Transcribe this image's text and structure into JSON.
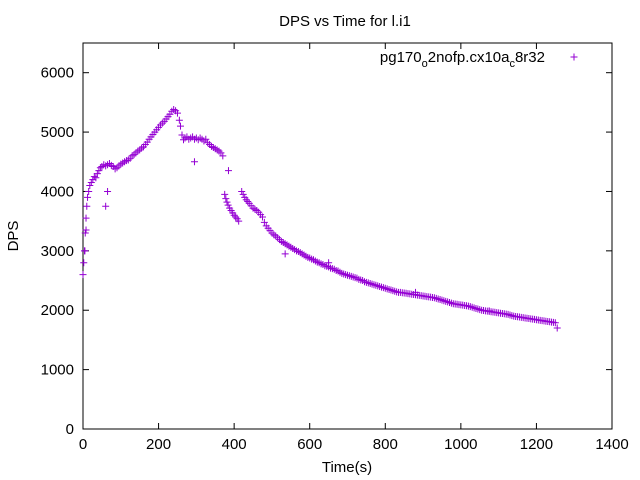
{
  "chart_data": {
    "type": "scatter",
    "title": "DPS vs Time for l.i1",
    "xlabel": "Time(s)",
    "ylabel": "DPS",
    "xlim": [
      0,
      1400
    ],
    "ylim": [
      0,
      6500
    ],
    "xticks": [
      0,
      200,
      400,
      600,
      800,
      1000,
      1200,
      1400
    ],
    "yticks": [
      0,
      1000,
      2000,
      3000,
      4000,
      5000,
      6000
    ],
    "grid": false,
    "legend_position": "top-right",
    "marker": "+",
    "color": "#9400d3",
    "series": [
      {
        "name_parts": [
          "pg170",
          "o",
          "2nofp.cx10a",
          "c",
          "8r32"
        ],
        "points": [
          [
            0,
            2600
          ],
          [
            2,
            2800
          ],
          [
            4,
            3000
          ],
          [
            6,
            3300
          ],
          [
            8,
            3550
          ],
          [
            10,
            3750
          ],
          [
            12,
            3900
          ],
          [
            15,
            4000
          ],
          [
            18,
            4100
          ],
          [
            22,
            4150
          ],
          [
            26,
            4200
          ],
          [
            30,
            4250
          ],
          [
            34,
            4230
          ],
          [
            38,
            4300
          ],
          [
            42,
            4350
          ],
          [
            46,
            4400
          ],
          [
            50,
            4420
          ],
          [
            55,
            4450
          ],
          [
            60,
            4430
          ],
          [
            65,
            4450
          ],
          [
            70,
            4470
          ],
          [
            75,
            4440
          ],
          [
            80,
            4420
          ],
          [
            85,
            4380
          ],
          [
            90,
            4400
          ],
          [
            95,
            4430
          ],
          [
            100,
            4460
          ],
          [
            105,
            4480
          ],
          [
            110,
            4500
          ],
          [
            115,
            4520
          ],
          [
            120,
            4530
          ],
          [
            125,
            4560
          ],
          [
            130,
            4600
          ],
          [
            135,
            4620
          ],
          [
            140,
            4650
          ],
          [
            145,
            4680
          ],
          [
            150,
            4700
          ],
          [
            155,
            4730
          ],
          [
            160,
            4750
          ],
          [
            165,
            4790
          ],
          [
            170,
            4830
          ],
          [
            175,
            4880
          ],
          [
            180,
            4920
          ],
          [
            185,
            4960
          ],
          [
            190,
            5000
          ],
          [
            195,
            5040
          ],
          [
            200,
            5080
          ],
          [
            205,
            5120
          ],
          [
            210,
            5150
          ],
          [
            215,
            5180
          ],
          [
            220,
            5220
          ],
          [
            225,
            5260
          ],
          [
            230,
            5300
          ],
          [
            235,
            5350
          ],
          [
            240,
            5380
          ],
          [
            245,
            5360
          ],
          [
            250,
            5320
          ],
          [
            255,
            5200
          ],
          [
            258,
            5100
          ],
          [
            262,
            4950
          ],
          [
            266,
            4870
          ],
          [
            270,
            4900
          ],
          [
            275,
            4920
          ],
          [
            280,
            4880
          ],
          [
            285,
            4900
          ],
          [
            290,
            4920
          ],
          [
            295,
            4880
          ],
          [
            300,
            4900
          ],
          [
            305,
            4870
          ],
          [
            310,
            4900
          ],
          [
            315,
            4880
          ],
          [
            320,
            4850
          ],
          [
            325,
            4880
          ],
          [
            330,
            4820
          ],
          [
            335,
            4790
          ],
          [
            340,
            4760
          ],
          [
            345,
            4740
          ],
          [
            350,
            4720
          ],
          [
            355,
            4700
          ],
          [
            360,
            4680
          ],
          [
            365,
            4650
          ],
          [
            370,
            4600
          ],
          [
            375,
            3950
          ],
          [
            378,
            3880
          ],
          [
            381,
            3820
          ],
          [
            384,
            3770
          ],
          [
            388,
            3720
          ],
          [
            392,
            3680
          ],
          [
            396,
            3640
          ],
          [
            400,
            3600
          ],
          [
            404,
            3570
          ],
          [
            408,
            3540
          ],
          [
            412,
            3500
          ],
          [
            420,
            4000
          ],
          [
            424,
            3950
          ],
          [
            428,
            3900
          ],
          [
            432,
            3860
          ],
          [
            436,
            3830
          ],
          [
            440,
            3800
          ],
          [
            445,
            3760
          ],
          [
            450,
            3720
          ],
          [
            455,
            3700
          ],
          [
            460,
            3680
          ],
          [
            465,
            3650
          ],
          [
            470,
            3610
          ],
          [
            475,
            3570
          ],
          [
            480,
            3480
          ],
          [
            485,
            3420
          ],
          [
            490,
            3380
          ],
          [
            495,
            3340
          ],
          [
            500,
            3300
          ],
          [
            505,
            3270
          ],
          [
            510,
            3250
          ],
          [
            515,
            3220
          ],
          [
            520,
            3190
          ],
          [
            525,
            3160
          ],
          [
            530,
            3140
          ],
          [
            535,
            3120
          ],
          [
            540,
            3100
          ],
          [
            545,
            3080
          ],
          [
            550,
            3060
          ],
          [
            555,
            3040
          ],
          [
            560,
            3020
          ],
          [
            565,
            3000
          ],
          [
            570,
            2990
          ],
          [
            575,
            2970
          ],
          [
            580,
            2950
          ],
          [
            585,
            2930
          ],
          [
            590,
            2910
          ],
          [
            595,
            2890
          ],
          [
            600,
            2880
          ],
          [
            605,
            2860
          ],
          [
            610,
            2850
          ],
          [
            615,
            2830
          ],
          [
            620,
            2810
          ],
          [
            625,
            2800
          ],
          [
            630,
            2780
          ],
          [
            635,
            2770
          ],
          [
            640,
            2750
          ],
          [
            645,
            2740
          ],
          [
            650,
            2730
          ],
          [
            655,
            2710
          ],
          [
            660,
            2700
          ],
          [
            665,
            2690
          ],
          [
            670,
            2670
          ],
          [
            675,
            2660
          ],
          [
            680,
            2640
          ],
          [
            685,
            2620
          ],
          [
            690,
            2610
          ],
          [
            695,
            2600
          ],
          [
            700,
            2590
          ],
          [
            705,
            2580
          ],
          [
            710,
            2570
          ],
          [
            715,
            2560
          ],
          [
            720,
            2550
          ],
          [
            725,
            2540
          ],
          [
            730,
            2520
          ],
          [
            735,
            2510
          ],
          [
            740,
            2500
          ],
          [
            745,
            2480
          ],
          [
            750,
            2470
          ],
          [
            755,
            2460
          ],
          [
            760,
            2450
          ],
          [
            765,
            2440
          ],
          [
            770,
            2430
          ],
          [
            775,
            2420
          ],
          [
            780,
            2410
          ],
          [
            785,
            2400
          ],
          [
            790,
            2390
          ],
          [
            795,
            2380
          ],
          [
            800,
            2370
          ],
          [
            805,
            2360
          ],
          [
            810,
            2350
          ],
          [
            815,
            2340
          ],
          [
            820,
            2330
          ],
          [
            825,
            2320
          ],
          [
            830,
            2310
          ],
          [
            835,
            2300
          ],
          [
            840,
            2300
          ],
          [
            845,
            2295
          ],
          [
            850,
            2290
          ],
          [
            855,
            2285
          ],
          [
            860,
            2280
          ],
          [
            865,
            2275
          ],
          [
            870,
            2270
          ],
          [
            875,
            2265
          ],
          [
            880,
            2260
          ],
          [
            885,
            2255
          ],
          [
            890,
            2250
          ],
          [
            895,
            2245
          ],
          [
            900,
            2240
          ],
          [
            905,
            2235
          ],
          [
            910,
            2230
          ],
          [
            915,
            2225
          ],
          [
            920,
            2220
          ],
          [
            925,
            2215
          ],
          [
            930,
            2210
          ],
          [
            935,
            2200
          ],
          [
            940,
            2190
          ],
          [
            945,
            2180
          ],
          [
            950,
            2170
          ],
          [
            955,
            2160
          ],
          [
            960,
            2150
          ],
          [
            965,
            2140
          ],
          [
            970,
            2130
          ],
          [
            975,
            2120
          ],
          [
            980,
            2110
          ],
          [
            985,
            2105
          ],
          [
            990,
            2100
          ],
          [
            995,
            2095
          ],
          [
            1000,
            2090
          ],
          [
            1005,
            2085
          ],
          [
            1010,
            2080
          ],
          [
            1015,
            2075
          ],
          [
            1020,
            2070
          ],
          [
            1025,
            2060
          ],
          [
            1030,
            2050
          ],
          [
            1035,
            2040
          ],
          [
            1040,
            2030
          ],
          [
            1045,
            2020
          ],
          [
            1050,
            2010
          ],
          [
            1055,
            2000
          ],
          [
            1060,
            1995
          ],
          [
            1065,
            1990
          ],
          [
            1070,
            1985
          ],
          [
            1075,
            1980
          ],
          [
            1080,
            1975
          ],
          [
            1085,
            1970
          ],
          [
            1090,
            1965
          ],
          [
            1095,
            1960
          ],
          [
            1100,
            1955
          ],
          [
            1105,
            1950
          ],
          [
            1110,
            1945
          ],
          [
            1115,
            1940
          ],
          [
            1120,
            1935
          ],
          [
            1125,
            1930
          ],
          [
            1130,
            1920
          ],
          [
            1135,
            1910
          ],
          [
            1140,
            1900
          ],
          [
            1145,
            1895
          ],
          [
            1150,
            1890
          ],
          [
            1155,
            1885
          ],
          [
            1160,
            1880
          ],
          [
            1165,
            1875
          ],
          [
            1170,
            1870
          ],
          [
            1175,
            1865
          ],
          [
            1180,
            1860
          ],
          [
            1185,
            1855
          ],
          [
            1190,
            1850
          ],
          [
            1195,
            1845
          ],
          [
            1200,
            1840
          ],
          [
            1205,
            1835
          ],
          [
            1210,
            1830
          ],
          [
            1215,
            1825
          ],
          [
            1220,
            1820
          ],
          [
            1225,
            1815
          ],
          [
            1230,
            1810
          ],
          [
            1235,
            1805
          ],
          [
            1240,
            1800
          ],
          [
            1245,
            1795
          ],
          [
            1250,
            1790
          ],
          [
            1255,
            1700
          ],
          [
            60,
            3750
          ],
          [
            65,
            4000
          ],
          [
            5,
            3000
          ],
          [
            8,
            3350
          ],
          [
            295,
            4500
          ],
          [
            385,
            4350
          ],
          [
            535,
            2950
          ],
          [
            650,
            2800
          ],
          [
            880,
            2300
          ],
          [
            1075,
            1990
          ]
        ]
      }
    ]
  }
}
